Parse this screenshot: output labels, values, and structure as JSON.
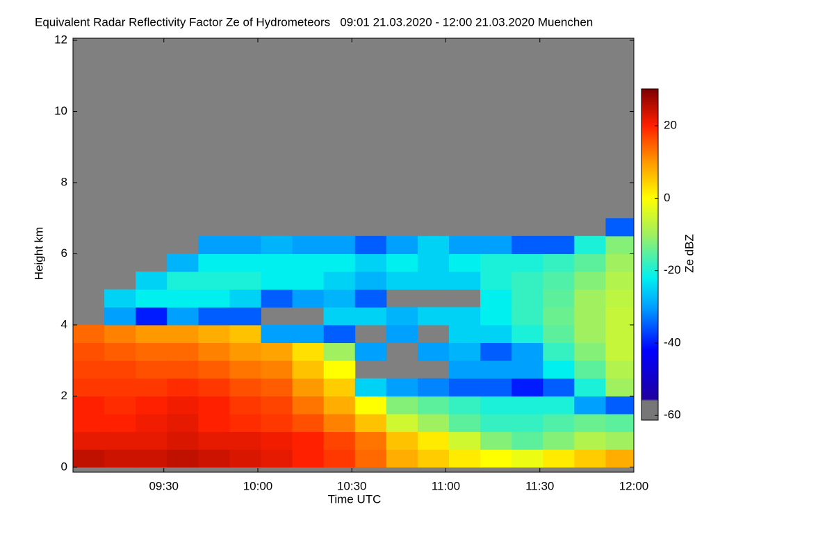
{
  "chart_data": {
    "type": "heatmap",
    "title": "Equivalent Radar Reflectivity Factor Ze of Hydrometeors   09:01 21.03.2020 - 12:00 21.03.2020 Muenchen",
    "x_label": "Time UTC",
    "y_label": "Height km",
    "colorbar_label": "Ze dBZ",
    "background_color": "#808080",
    "xlim": [
      541,
      720
    ],
    "xticks": [
      {
        "value": 570,
        "label": "09:30"
      },
      {
        "value": 600,
        "label": "10:00"
      },
      {
        "value": 630,
        "label": "10:30"
      },
      {
        "value": 660,
        "label": "11:00"
      },
      {
        "value": 690,
        "label": "11:30"
      },
      {
        "value": 720,
        "label": "12:00"
      }
    ],
    "ylim": [
      -0.14,
      12.06
    ],
    "yticks": [
      0,
      2,
      4,
      6,
      8,
      10,
      12
    ],
    "clim": [
      -61.3,
      30.2
    ],
    "cticks": [
      20,
      0,
      -20,
      -40,
      -60
    ],
    "colormap": [
      {
        "value": -56,
        "color": "#777777"
      },
      {
        "value": -55.5,
        "color": "#2000a0"
      },
      {
        "value": -42,
        "color": "#0000ff"
      },
      {
        "value": -30,
        "color": "#00a0ff"
      },
      {
        "value": -22,
        "color": "#00f0f0"
      },
      {
        "value": -10,
        "color": "#a0f060"
      },
      {
        "value": 0,
        "color": "#ffff00"
      },
      {
        "value": 10,
        "color": "#ff9900"
      },
      {
        "value": 20,
        "color": "#ff2000"
      },
      {
        "value": 30,
        "color": "#800000"
      }
    ],
    "x_step": 10,
    "y_step": 0.5,
    "x": [
      546,
      556,
      566,
      576,
      586,
      596,
      606,
      616,
      626,
      636,
      646,
      656,
      666,
      676,
      686,
      696,
      706,
      716
    ],
    "y": [
      0.25,
      0.75,
      1.25,
      1.75,
      2.25,
      2.75,
      3.25,
      3.75,
      4.25,
      4.75,
      5.25,
      5.75,
      6.25,
      6.75,
      7.25,
      7.75,
      8.25,
      8.75,
      9.25,
      9.75,
      10.25,
      10.75,
      11.25,
      11.75
    ],
    "z": [
      [
        25,
        22,
        20,
        20,
        18,
        17,
        16,
        14,
        null,
        null,
        null,
        null,
        null,
        null,
        null,
        null,
        null,
        null,
        null,
        null,
        null,
        null,
        null,
        null
      ],
      [
        24,
        22,
        20,
        19,
        18,
        17,
        15,
        12,
        -30,
        -25,
        null,
        null,
        null,
        null,
        null,
        null,
        null,
        null,
        null,
        null,
        null,
        null,
        null,
        null
      ],
      [
        24,
        22,
        21,
        20,
        18,
        16,
        14,
        10,
        -40,
        -22,
        -25,
        null,
        null,
        null,
        null,
        null,
        null,
        null,
        null,
        null,
        null,
        null,
        null,
        null
      ],
      [
        25,
        23,
        22,
        21,
        19,
        16,
        14,
        10,
        -30,
        -22,
        -20,
        -28,
        null,
        null,
        null,
        null,
        null,
        null,
        null,
        null,
        null,
        null,
        null,
        null
      ],
      [
        24,
        22,
        20,
        20,
        18,
        15,
        12,
        8,
        -35,
        -22,
        -20,
        -22,
        -30,
        null,
        null,
        null,
        null,
        null,
        null,
        null,
        null,
        null,
        null,
        null
      ],
      [
        23,
        22,
        19,
        18,
        16,
        13,
        10,
        6,
        -35,
        -25,
        -20,
        -22,
        -30,
        null,
        null,
        null,
        null,
        null,
        null,
        null,
        null,
        null,
        null,
        null
      ],
      [
        22,
        21,
        18,
        17,
        15,
        12,
        9,
        -30,
        null,
        -35,
        -22,
        -22,
        -28,
        null,
        null,
        null,
        null,
        null,
        null,
        null,
        null,
        null,
        null,
        null
      ],
      [
        20,
        20,
        16,
        13,
        10,
        6,
        3,
        -30,
        null,
        -30,
        -22,
        -22,
        -30,
        null,
        null,
        null,
        null,
        null,
        null,
        null,
        null,
        null,
        null,
        null
      ],
      [
        18,
        17,
        12,
        8,
        5,
        0,
        -10,
        -35,
        -25,
        -28,
        -25,
        -22,
        -30,
        null,
        null,
        null,
        null,
        null,
        null,
        null,
        null,
        null,
        null,
        null
      ],
      [
        14,
        13,
        6,
        0,
        -25,
        null,
        -30,
        null,
        -25,
        -35,
        -28,
        -25,
        -35,
        null,
        null,
        null,
        null,
        null,
        null,
        null,
        null,
        null,
        null,
        null
      ],
      [
        8,
        6,
        -5,
        -12,
        -30,
        null,
        null,
        -30,
        -28,
        null,
        -25,
        -22,
        -30,
        null,
        null,
        null,
        null,
        null,
        null,
        null,
        null,
        null,
        null,
        null
      ],
      [
        5,
        2,
        -10,
        -15,
        -32,
        null,
        -30,
        null,
        -25,
        null,
        -25,
        -25,
        -25,
        null,
        null,
        null,
        null,
        null,
        null,
        null,
        null,
        null,
        null,
        null
      ],
      [
        2,
        -5,
        -15,
        -18,
        -35,
        -30,
        -28,
        -25,
        -25,
        null,
        -25,
        -22,
        -30,
        null,
        null,
        null,
        null,
        null,
        null,
        null,
        null,
        null,
        null,
        null
      ],
      [
        0,
        -12,
        -18,
        -20,
        -35,
        -30,
        -35,
        -25,
        -22,
        -22,
        -20,
        -20,
        -30,
        null,
        null,
        null,
        null,
        null,
        null,
        null,
        null,
        null,
        null,
        null
      ],
      [
        -2,
        -15,
        -18,
        -20,
        -40,
        -30,
        -30,
        -20,
        -18,
        -18,
        -18,
        -20,
        -35,
        null,
        null,
        null,
        null,
        null,
        null,
        null,
        null,
        null,
        null,
        null
      ],
      [
        2,
        -12,
        -16,
        -20,
        -35,
        -22,
        -18,
        -15,
        -14,
        -15,
        -16,
        -18,
        -35,
        null,
        null,
        null,
        null,
        null,
        null,
        null,
        null,
        null,
        null,
        null
      ],
      [
        5,
        -8,
        -14,
        -30,
        -20,
        -15,
        -12,
        -10,
        -10,
        -10,
        -12,
        -15,
        -20,
        null,
        null,
        null,
        null,
        null,
        null,
        null,
        null,
        null,
        null,
        null
      ],
      [
        8,
        -10,
        -15,
        -35,
        -10,
        -8,
        -6,
        -6,
        -6,
        -7,
        -8,
        -10,
        -12,
        -35,
        null,
        null,
        null,
        null,
        null,
        null,
        null,
        null,
        null,
        null
      ]
    ]
  }
}
